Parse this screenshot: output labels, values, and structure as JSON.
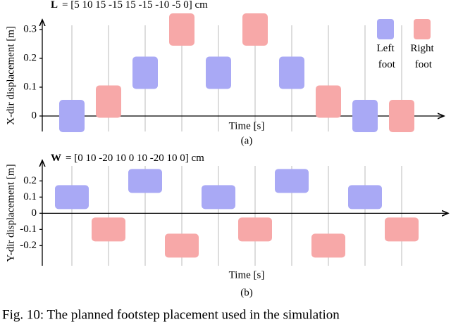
{
  "chart_data": [
    {
      "type": "footstep",
      "annotation_symbol": "L",
      "annotation": "= [5  10  15  -15  15  -15  -10  -5  0] cm",
      "y_label": "X-dir displacement [m]",
      "x_label": "Time [s]",
      "subcaption": "(a)",
      "categories": [
        null,
        null,
        null,
        null,
        null,
        null,
        null,
        null,
        null,
        null
      ],
      "series": [
        {
          "name": "Left foot",
          "color": "#a9a9f5",
          "values": [
            0,
            null,
            0.15,
            null,
            0.15,
            null,
            0.15,
            null,
            0,
            null
          ]
        },
        {
          "name": "Right foot",
          "color": "#f7a8a8",
          "values": [
            null,
            0.05,
            null,
            0.3,
            null,
            0.3,
            null,
            0.05,
            null,
            0
          ]
        }
      ],
      "ylim": [
        -0.05,
        0.32
      ],
      "yticks": [
        0,
        0.1,
        0.2,
        0.3
      ],
      "grid": true,
      "legend": "top-right"
    },
    {
      "type": "footstep",
      "annotation_symbol": "W",
      "annotation": "= [0  10  -20  10  0  10  -20  10  0]  cm",
      "y_label": "Y-dir displacement [m]",
      "x_label": "Time [s]",
      "subcaption": "(b)",
      "categories": [
        null,
        null,
        null,
        null,
        null,
        null,
        null,
        null,
        null,
        null
      ],
      "series": [
        {
          "name": "Left foot",
          "color": "#a9a9f5",
          "values": [
            0.1,
            null,
            0.2,
            null,
            0.1,
            null,
            0.2,
            null,
            0.1,
            null
          ]
        },
        {
          "name": "Right foot",
          "color": "#f7a8a8",
          "values": [
            null,
            -0.1,
            null,
            -0.2,
            null,
            -0.1,
            null,
            -0.2,
            null,
            -0.1
          ]
        }
      ],
      "ylim": [
        -0.32,
        0.31
      ],
      "yticks": [
        -0.2,
        -0.1,
        0,
        0.1,
        0.2
      ],
      "grid": true,
      "legend": "none"
    }
  ],
  "caption": "Fig. 10: The planned footstep placement used in the simulation"
}
